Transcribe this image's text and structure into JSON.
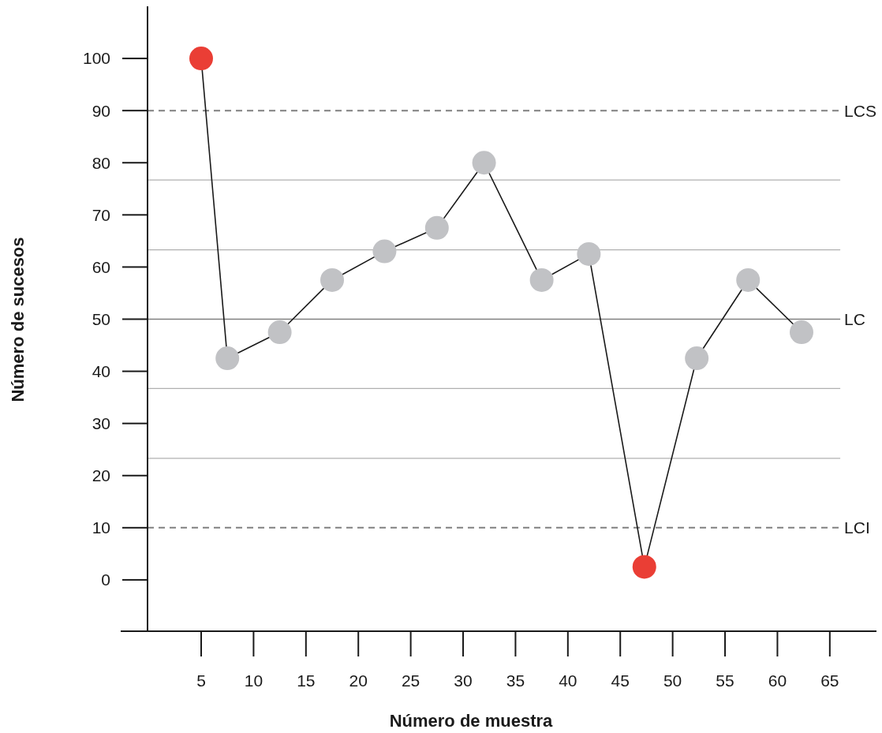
{
  "chart_data": {
    "type": "line",
    "xlabel": "Número de muestra",
    "ylabel": "Número de sucesos",
    "xlim": [
      0,
      69.5
    ],
    "ylim": [
      -10,
      110
    ],
    "xticks": [
      5,
      10,
      15,
      20,
      25,
      30,
      35,
      40,
      45,
      50,
      55,
      60,
      65
    ],
    "yticks": [
      0,
      10,
      20,
      30,
      40,
      50,
      60,
      70,
      80,
      90,
      100
    ],
    "grid": false,
    "marker": "circle",
    "line_style": "solid",
    "series": [
      {
        "color": "#1a1a1a",
        "x": [
          5,
          7.5,
          12.5,
          17.5,
          22.5,
          27.5,
          32,
          37.5,
          42,
          47.3,
          52.3,
          57.2,
          62.3
        ],
        "values": [
          100,
          42.5,
          47.5,
          57.5,
          63,
          67.5,
          80,
          57.5,
          62.5,
          2.5,
          42.5,
          57.5,
          47.5
        ],
        "colors": [
          "#ea3e35",
          "#c1c2c5",
          "#c1c2c5",
          "#c1c2c5",
          "#c1c2c5",
          "#c1c2c5",
          "#c1c2c5",
          "#c1c2c5",
          "#c1c2c5",
          "#ea3e35",
          "#c1c2c5",
          "#c1c2c5",
          "#c1c2c5"
        ]
      }
    ],
    "ref_lines": [
      {
        "axis": "y",
        "value": 90,
        "label": "LCS",
        "color": "#808080",
        "line_style": "dashed"
      },
      {
        "axis": "y",
        "value": 76.7,
        "label": null,
        "color": "#b0b0b0",
        "line_style": "solid"
      },
      {
        "axis": "y",
        "value": 63.3,
        "label": null,
        "color": "#b0b0b0",
        "line_style": "solid"
      },
      {
        "axis": "y",
        "value": 50,
        "label": "LC",
        "color": "#808080",
        "line_style": "solid"
      },
      {
        "axis": "y",
        "value": 36.7,
        "label": null,
        "color": "#b0b0b0",
        "line_style": "solid"
      },
      {
        "axis": "y",
        "value": 23.3,
        "label": null,
        "color": "#b0b0b0",
        "line_style": "solid"
      },
      {
        "axis": "y",
        "value": 10,
        "label": "LCI",
        "color": "#808080",
        "line_style": "dashed"
      }
    ]
  }
}
